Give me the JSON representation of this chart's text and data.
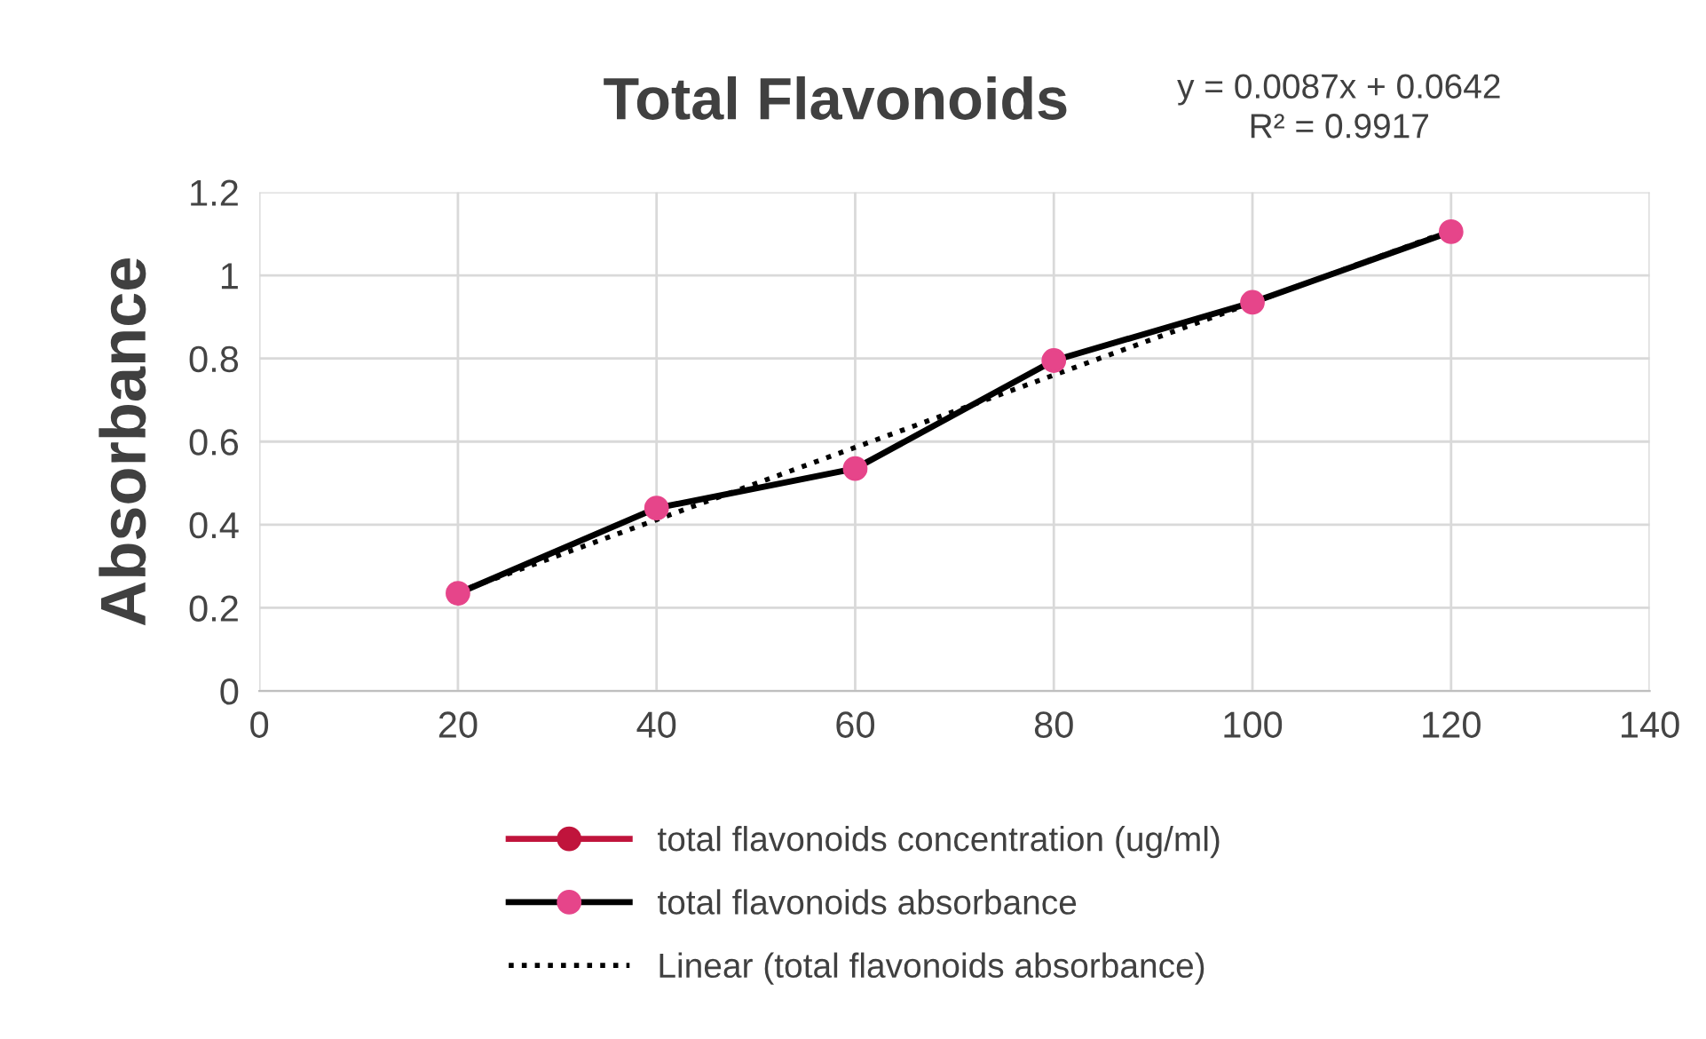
{
  "chart_data": {
    "type": "line",
    "title": "Total Flavonoids",
    "ylabel": "Absorbance",
    "annotations": [
      "y = 0.0087x + 0.0642\nR² = 0.9917"
    ],
    "x": [
      20,
      40,
      60,
      80,
      100,
      120
    ],
    "series": [
      {
        "name": "total flavonoids concentration (ug/ml)",
        "color": "#c0143c",
        "marker": "circle",
        "line_style": "solid",
        "values": [
          null,
          null,
          null,
          null,
          null,
          null
        ]
      },
      {
        "name": "total flavonoids absorbance",
        "color": "#000000",
        "colors": [
          "#e6458a",
          "#e6458a",
          "#e6458a",
          "#e6458a",
          "#e6458a",
          "#e6458a"
        ],
        "marker": "circle",
        "line_style": "solid",
        "values": [
          0.235,
          0.44,
          0.535,
          0.795,
          0.935,
          1.105
        ]
      },
      {
        "name": "Linear (total flavonoids absorbance)",
        "color": "#000000",
        "marker": "none",
        "line_style": "dotted",
        "x": [
          20,
          120
        ],
        "values": [
          0.238,
          1.108
        ]
      }
    ],
    "xlim": [
      0,
      140
    ],
    "xticks": [
      0,
      20,
      40,
      60,
      80,
      100,
      120,
      140
    ],
    "ylim": [
      0,
      1.2
    ],
    "yticks": [
      0,
      0.2,
      0.4,
      0.6,
      0.8,
      1,
      1.2
    ],
    "grid": true,
    "legend": "bottom"
  }
}
